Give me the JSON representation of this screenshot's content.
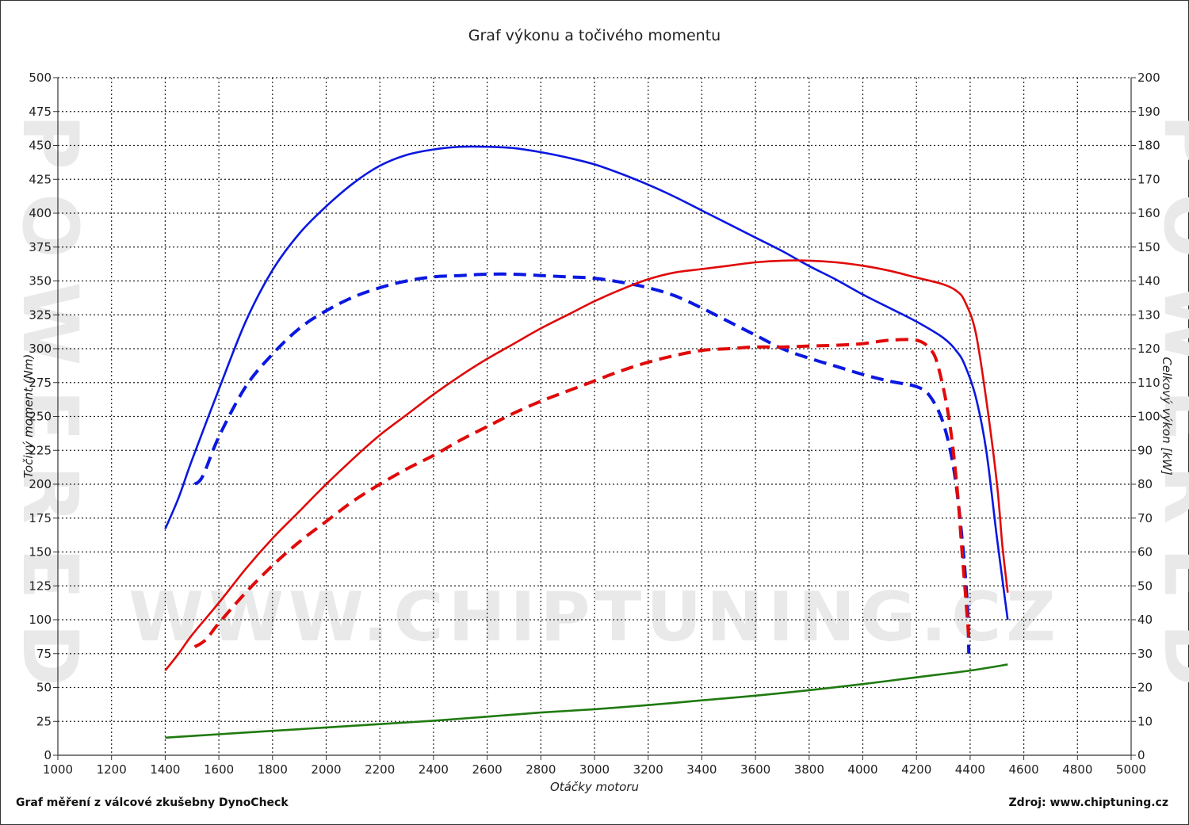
{
  "chart_data": {
    "type": "line",
    "title": "Graf výkonu a točivého momentu",
    "xlabel": "Otáčky motoru",
    "ylabel_left": "Točivý moment (Nm)",
    "ylabel_right": "Celkový výkon [kW]",
    "xlim": [
      1000,
      5000
    ],
    "ylim_left": [
      0,
      500
    ],
    "ylim_right": [
      0,
      200
    ],
    "x_ticks": [
      1000,
      1200,
      1400,
      1600,
      1800,
      2000,
      2200,
      2400,
      2600,
      2800,
      3000,
      3200,
      3400,
      3600,
      3800,
      4000,
      4200,
      4400,
      4600,
      4800,
      5000
    ],
    "y_left_ticks": [
      0,
      25,
      50,
      75,
      100,
      125,
      150,
      175,
      200,
      225,
      250,
      275,
      300,
      325,
      350,
      375,
      400,
      425,
      450,
      475,
      500
    ],
    "y_right_ticks": [
      0,
      10,
      20,
      30,
      40,
      50,
      60,
      70,
      80,
      90,
      100,
      110,
      120,
      130,
      140,
      150,
      160,
      170,
      180,
      190,
      200
    ],
    "grid": true,
    "series": [
      {
        "axis": "left",
        "color": "#0a18e0",
        "dash": false,
        "points": [
          [
            1400,
            167
          ],
          [
            1450,
            190
          ],
          [
            1500,
            218
          ],
          [
            1600,
            270
          ],
          [
            1700,
            320
          ],
          [
            1800,
            358
          ],
          [
            1900,
            385
          ],
          [
            2000,
            405
          ],
          [
            2100,
            422
          ],
          [
            2200,
            435
          ],
          [
            2300,
            443
          ],
          [
            2400,
            447
          ],
          [
            2500,
            449
          ],
          [
            2600,
            449
          ],
          [
            2700,
            448
          ],
          [
            2800,
            445
          ],
          [
            2900,
            441
          ],
          [
            3000,
            436
          ],
          [
            3100,
            429
          ],
          [
            3200,
            421
          ],
          [
            3300,
            412
          ],
          [
            3400,
            402
          ],
          [
            3500,
            392
          ],
          [
            3600,
            382
          ],
          [
            3700,
            372
          ],
          [
            3800,
            361
          ],
          [
            3900,
            351
          ],
          [
            4000,
            340
          ],
          [
            4100,
            330
          ],
          [
            4200,
            320
          ],
          [
            4300,
            308
          ],
          [
            4350,
            298
          ],
          [
            4380,
            288
          ],
          [
            4420,
            265
          ],
          [
            4460,
            225
          ],
          [
            4500,
            160
          ],
          [
            4530,
            115
          ],
          [
            4540,
            100
          ]
        ]
      },
      {
        "axis": "left",
        "color": "#0a18e0",
        "dash": true,
        "points": [
          [
            1510,
            200
          ],
          [
            1540,
            206
          ],
          [
            1600,
            235
          ],
          [
            1700,
            272
          ],
          [
            1800,
            296
          ],
          [
            1900,
            315
          ],
          [
            2000,
            328
          ],
          [
            2100,
            338
          ],
          [
            2200,
            345
          ],
          [
            2300,
            350
          ],
          [
            2400,
            353
          ],
          [
            2500,
            354
          ],
          [
            2600,
            355
          ],
          [
            2700,
            355
          ],
          [
            2800,
            354
          ],
          [
            2900,
            353
          ],
          [
            3000,
            352
          ],
          [
            3100,
            349
          ],
          [
            3200,
            345
          ],
          [
            3300,
            339
          ],
          [
            3400,
            330
          ],
          [
            3500,
            320
          ],
          [
            3600,
            310
          ],
          [
            3700,
            300
          ],
          [
            3800,
            293
          ],
          [
            3900,
            287
          ],
          [
            4000,
            281
          ],
          [
            4100,
            276
          ],
          [
            4200,
            272
          ],
          [
            4250,
            265
          ],
          [
            4300,
            245
          ],
          [
            4340,
            210
          ],
          [
            4370,
            160
          ],
          [
            4390,
            110
          ],
          [
            4395,
            75
          ]
        ]
      },
      {
        "axis": "right",
        "color": "#e00a0a",
        "dash": false,
        "points": [
          [
            1400,
            25
          ],
          [
            1450,
            30
          ],
          [
            1500,
            35.5
          ],
          [
            1600,
            45
          ],
          [
            1700,
            55
          ],
          [
            1800,
            64
          ],
          [
            1900,
            72
          ],
          [
            2000,
            80
          ],
          [
            2100,
            87.5
          ],
          [
            2200,
            94.5
          ],
          [
            2300,
            100.5
          ],
          [
            2400,
            106.5
          ],
          [
            2500,
            112
          ],
          [
            2600,
            117
          ],
          [
            2700,
            121.5
          ],
          [
            2800,
            126
          ],
          [
            2900,
            130
          ],
          [
            3000,
            134
          ],
          [
            3100,
            137.5
          ],
          [
            3200,
            140.5
          ],
          [
            3300,
            142.5
          ],
          [
            3400,
            143.5
          ],
          [
            3500,
            144.5
          ],
          [
            3600,
            145.5
          ],
          [
            3700,
            146
          ],
          [
            3800,
            146
          ],
          [
            3900,
            145.5
          ],
          [
            4000,
            144.5
          ],
          [
            4100,
            143
          ],
          [
            4200,
            141
          ],
          [
            4300,
            139
          ],
          [
            4350,
            137
          ],
          [
            4380,
            134
          ],
          [
            4420,
            125
          ],
          [
            4460,
            105
          ],
          [
            4500,
            80
          ],
          [
            4520,
            62
          ],
          [
            4540,
            48
          ]
        ]
      },
      {
        "axis": "right",
        "color": "#e00a0a",
        "dash": true,
        "points": [
          [
            1510,
            32
          ],
          [
            1550,
            34
          ],
          [
            1600,
            39
          ],
          [
            1700,
            48
          ],
          [
            1800,
            56
          ],
          [
            1900,
            63
          ],
          [
            2000,
            69
          ],
          [
            2100,
            75
          ],
          [
            2200,
            80
          ],
          [
            2300,
            84.5
          ],
          [
            2400,
            88.5
          ],
          [
            2500,
            93
          ],
          [
            2600,
            97
          ],
          [
            2700,
            101
          ],
          [
            2800,
            104.5
          ],
          [
            2900,
            107.5
          ],
          [
            3000,
            110.5
          ],
          [
            3100,
            113.5
          ],
          [
            3200,
            116
          ],
          [
            3300,
            118
          ],
          [
            3400,
            119.5
          ],
          [
            3500,
            120
          ],
          [
            3600,
            120.5
          ],
          [
            3700,
            120.5
          ],
          [
            3800,
            120.8
          ],
          [
            3900,
            121
          ],
          [
            4000,
            121.5
          ],
          [
            4100,
            122.5
          ],
          [
            4200,
            122.5
          ],
          [
            4250,
            120
          ],
          [
            4280,
            115
          ],
          [
            4320,
            100
          ],
          [
            4350,
            80
          ],
          [
            4370,
            60
          ],
          [
            4390,
            40
          ],
          [
            4395,
            34
          ]
        ]
      },
      {
        "axis": "left",
        "color": "#1f7a10",
        "dash": false,
        "points": [
          [
            1400,
            13
          ],
          [
            1600,
            15.5
          ],
          [
            1800,
            18
          ],
          [
            2000,
            20.5
          ],
          [
            2200,
            23
          ],
          [
            2400,
            25.5
          ],
          [
            2600,
            28.5
          ],
          [
            2800,
            31.5
          ],
          [
            3000,
            34
          ],
          [
            3200,
            37
          ],
          [
            3400,
            40.5
          ],
          [
            3600,
            44
          ],
          [
            3800,
            48
          ],
          [
            4000,
            52.5
          ],
          [
            4200,
            57.5
          ],
          [
            4400,
            62.5
          ],
          [
            4540,
            67
          ]
        ]
      }
    ]
  },
  "footer": {
    "left": "Graf měření z válcové zkušebny DynoCheck",
    "right": "Zdroj: www.chiptuning.cz"
  },
  "watermark": {
    "text": "WWW.CHIPTUNING.CZ",
    "side": "POWERED"
  }
}
